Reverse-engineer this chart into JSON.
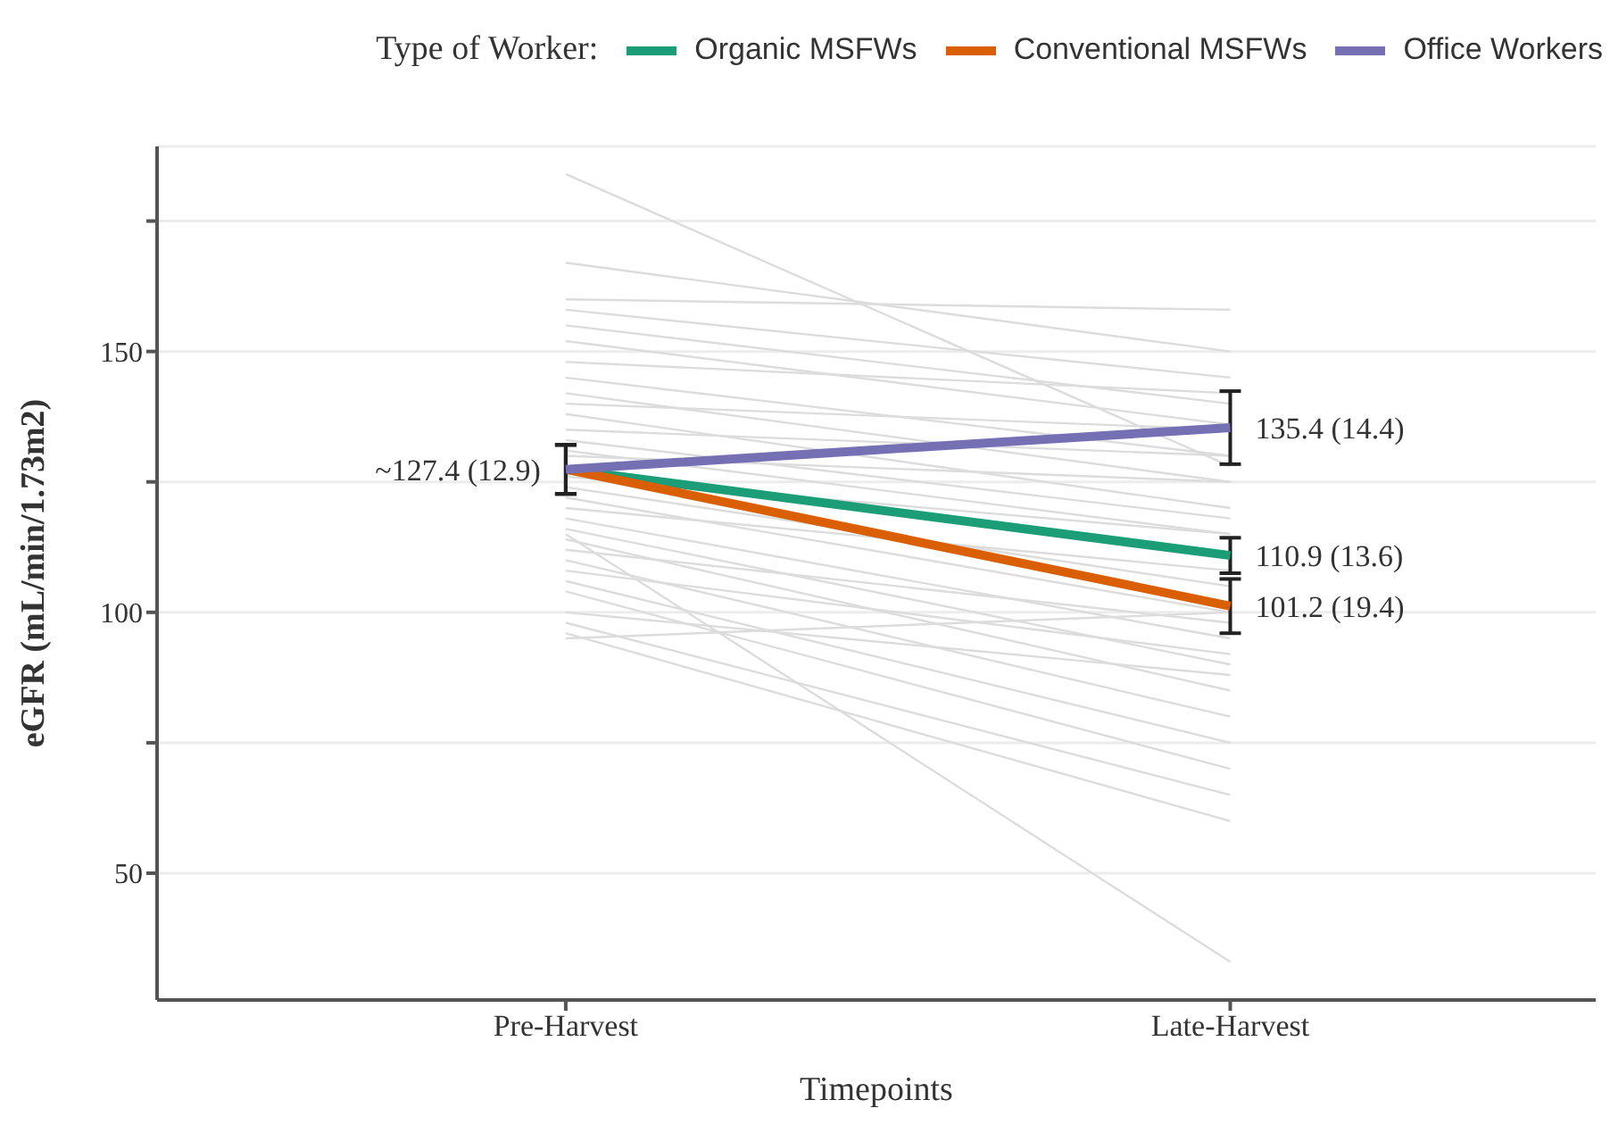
{
  "chart_data": {
    "type": "line",
    "xlabel": "Timepoints",
    "ylabel": "eGFR (mL/min/1.73m2)",
    "legend_title": "Type of Worker:",
    "categories": [
      "Pre-Harvest",
      "Late-Harvest"
    ],
    "ylim": [
      25.7,
      189.3
    ],
    "yticks": [
      50,
      {
        "value": 75,
        "label": null
      },
      100,
      {
        "value": 125,
        "label": null
      },
      150,
      {
        "value": 175,
        "label": null
      }
    ],
    "grid": "y",
    "legend": "top",
    "marker": "none",
    "line_style": "solid",
    "series": [
      {
        "color": "#dcdcdc",
        "values": [
          184,
          128
        ]
      },
      {
        "color": "#dcdcdc",
        "values": [
          167,
          150
        ]
      },
      {
        "color": "#dcdcdc",
        "values": [
          160,
          158
        ]
      },
      {
        "color": "#dcdcdc",
        "values": [
          158,
          145
        ]
      },
      {
        "color": "#dcdcdc",
        "values": [
          155,
          140
        ]
      },
      {
        "color": "#dcdcdc",
        "values": [
          152,
          136
        ]
      },
      {
        "color": "#dcdcdc",
        "values": [
          148,
          142
        ]
      },
      {
        "color": "#dcdcdc",
        "values": [
          145,
          130
        ]
      },
      {
        "color": "#dcdcdc",
        "values": [
          142,
          125
        ]
      },
      {
        "color": "#dcdcdc",
        "values": [
          140,
          135
        ]
      },
      {
        "color": "#dcdcdc",
        "values": [
          138,
          120
        ]
      },
      {
        "color": "#dcdcdc",
        "values": [
          135,
          130
        ]
      },
      {
        "color": "#dcdcdc",
        "values": [
          133,
          118
        ]
      },
      {
        "color": "#dcdcdc",
        "values": [
          130,
          125
        ]
      },
      {
        "color": "#dcdcdc",
        "values": [
          131,
          115
        ]
      },
      {
        "color": "#dcdcdc",
        "values": [
          126,
          115
        ]
      },
      {
        "color": "#dcdcdc",
        "values": [
          124,
          105
        ]
      },
      {
        "color": "#dcdcdc",
        "values": [
          122,
          100
        ]
      },
      {
        "color": "#dcdcdc",
        "values": [
          120,
          108
        ]
      },
      {
        "color": "#dcdcdc",
        "values": [
          118,
          95
        ]
      },
      {
        "color": "#dcdcdc",
        "values": [
          116,
          90
        ]
      },
      {
        "color": "#dcdcdc",
        "values": [
          114,
          85
        ]
      },
      {
        "color": "#dcdcdc",
        "values": [
          112,
          98
        ]
      },
      {
        "color": "#dcdcdc",
        "values": [
          110,
          80
        ]
      },
      {
        "color": "#dcdcdc",
        "values": [
          108,
          92
        ]
      },
      {
        "color": "#dcdcdc",
        "values": [
          106,
          75
        ]
      },
      {
        "color": "#dcdcdc",
        "values": [
          104,
          70
        ]
      },
      {
        "color": "#dcdcdc",
        "values": [
          100,
          88
        ]
      },
      {
        "color": "#dcdcdc",
        "values": [
          98,
          65
        ]
      },
      {
        "color": "#dcdcdc",
        "values": [
          96,
          60
        ]
      },
      {
        "color": "#dcdcdc",
        "values": [
          115,
          33
        ]
      },
      {
        "color": "#dcdcdc",
        "values": [
          95,
          100
        ]
      },
      {
        "name": "Organic MSFWs",
        "color": "#1b9e77",
        "values": [
          127.4,
          110.9
        ],
        "errors": [
          4.7,
          3.4
        ]
      },
      {
        "name": "Conventional MSFWs",
        "color": "#d95f02",
        "values": [
          127.4,
          101.2
        ],
        "errors": [
          4.7,
          5.2
        ]
      },
      {
        "name": "Office Workers",
        "color": "#7570b3",
        "values": [
          127.4,
          135.4
        ],
        "errors": [
          4.7,
          7
        ]
      }
    ],
    "annotations": [
      {
        "text": "~127.4 (12.9)",
        "x": "Pre-Harvest",
        "y": 127.4
      },
      {
        "text": "135.4 (14.4)",
        "x": "Late-Harvest",
        "y": 135.4
      },
      {
        "text": "110.9 (13.6)",
        "x": "Late-Harvest",
        "y": 110.9
      },
      {
        "text": "101.2 (19.4)",
        "x": "Late-Harvest",
        "y": 101.2
      }
    ]
  }
}
